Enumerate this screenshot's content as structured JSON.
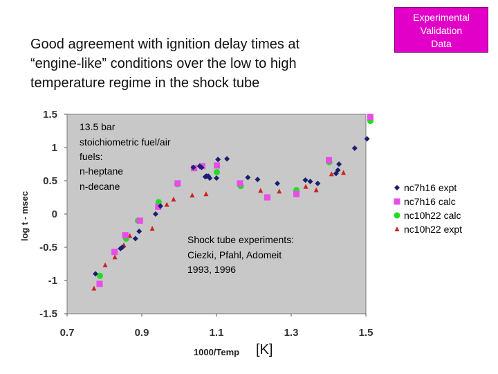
{
  "headline": [
    "Good agreement with ignition delay times at",
    "“engine-like” conditions over the low to high",
    "temperature regime in the shock tube"
  ],
  "badge": [
    "Experimental",
    "Validation",
    "Data"
  ],
  "unit_label": "[K]",
  "colors": {
    "series1": "#1b1f6e",
    "series2": "#e84de8",
    "series3": "#22dd22",
    "series4": "#cc2222"
  },
  "chart_data": {
    "type": "scatter",
    "xlabel": "1000/Temp",
    "ylabel": "log t - msec",
    "xlim": [
      0.7,
      1.5
    ],
    "ylim": [
      -1.5,
      1.5
    ],
    "xticks": [
      "0.7",
      "0.9",
      "1.1",
      "1.3",
      "1.5"
    ],
    "xtick_values": [
      0.7,
      0.9,
      1.1,
      1.3,
      1.5
    ],
    "yticks": [
      "1.5",
      "1",
      "0.5",
      "0",
      "-0.5",
      "-1",
      "-1.5"
    ],
    "ytick_values": [
      1.5,
      1,
      0.5,
      0,
      -0.5,
      -1,
      -1.5
    ],
    "annotations": [
      [
        "13.5 bar",
        "stoichiometric fuel/air",
        "fuels:",
        "n-heptane",
        "n-decane"
      ],
      [
        "Shock tube experiments:",
        "Ciezki, Pfahl, Adomeit",
        "1993, 1996"
      ]
    ],
    "series": [
      {
        "name": "nc7h16 expt",
        "marker": "diamond",
        "x": [
          0.776,
          0.843,
          0.848,
          0.883,
          0.893,
          0.937,
          0.95,
          1.038,
          1.055,
          1.06,
          1.07,
          1.073,
          1.078,
          1.082,
          1.1,
          1.104,
          1.128,
          1.184,
          1.21,
          1.263,
          1.338,
          1.351,
          1.371,
          1.42,
          1.425,
          1.428,
          1.47,
          1.503
        ],
        "y": [
          -0.9,
          -0.52,
          -0.5,
          -0.37,
          -0.26,
          0.0,
          0.12,
          0.7,
          0.72,
          0.7,
          0.56,
          0.57,
          0.57,
          0.54,
          0.54,
          0.82,
          0.83,
          0.55,
          0.52,
          0.46,
          0.51,
          0.49,
          0.46,
          0.61,
          0.66,
          0.75,
          0.99,
          1.13
        ]
      },
      {
        "name": "nc7h16 calc",
        "marker": "square",
        "x": [
          0.787,
          0.827,
          0.856,
          0.895,
          0.944,
          0.996,
          1.04,
          1.062,
          1.101,
          1.163,
          1.236,
          1.314,
          1.401,
          1.512
        ],
        "y": [
          -1.05,
          -0.57,
          -0.32,
          -0.1,
          0.11,
          0.46,
          0.69,
          0.72,
          0.73,
          0.46,
          0.25,
          0.3,
          0.81,
          1.46
        ]
      },
      {
        "name": "nc10h22 calc",
        "marker": "circle",
        "x": [
          0.788,
          0.858,
          0.89,
          0.945,
          0.995,
          1.101,
          1.165,
          1.236,
          1.314,
          1.402,
          1.512
        ],
        "y": [
          -0.93,
          -0.37,
          -0.1,
          0.18,
          0.45,
          0.63,
          0.42,
          0.25,
          0.36,
          0.78,
          1.4
        ]
      },
      {
        "name": "nc10h22 expt",
        "marker": "triangle",
        "x": [
          0.772,
          0.802,
          0.828,
          0.852,
          0.868,
          0.928,
          0.967,
          0.985,
          1.035,
          1.072,
          1.163,
          1.218,
          1.268,
          1.339,
          1.367,
          1.408,
          1.44
        ],
        "y": [
          -1.12,
          -0.77,
          -0.65,
          -0.47,
          -0.33,
          -0.22,
          0.14,
          0.22,
          0.28,
          0.3,
          0.44,
          0.35,
          0.34,
          0.41,
          0.36,
          0.6,
          0.62
        ]
      }
    ]
  }
}
